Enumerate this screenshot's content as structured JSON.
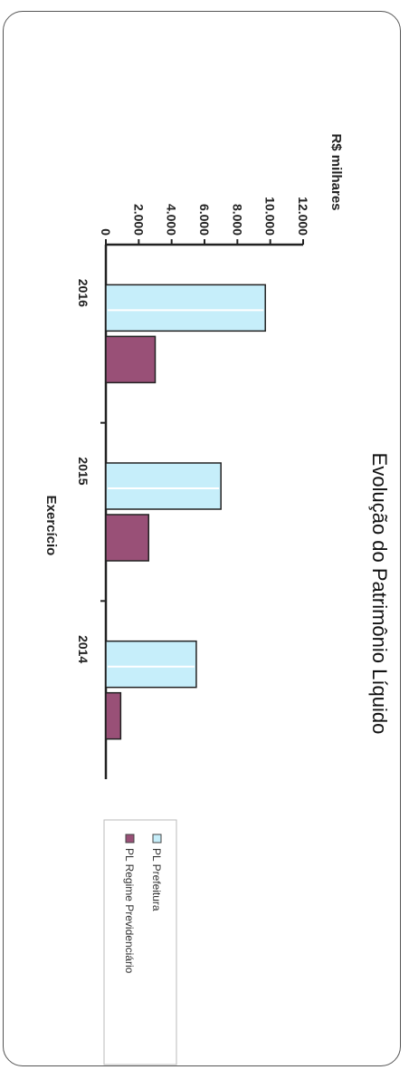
{
  "chart_data": {
    "type": "bar",
    "orientation": "vertical",
    "rotated_on_page": "90deg clockwise",
    "title": "Evolução do Patrimônio Líquido",
    "xlabel": "Exercício",
    "ylabel": "R$ milhares",
    "categories": [
      "2016",
      "2015",
      "2014"
    ],
    "y_ticks": [
      "0",
      "2.000",
      "4.000",
      "6.000",
      "8.000",
      "10.000",
      "12.000"
    ],
    "ylim": [
      0,
      12000
    ],
    "grid": false,
    "legend_position": "right",
    "series": [
      {
        "name": "PL Prefeitura",
        "color": "#c6eefa",
        "values": [
          9700,
          7000,
          5500
        ]
      },
      {
        "name": "PL Regime Previdenciário",
        "color": "#995077",
        "values": [
          3000,
          2600,
          900
        ]
      }
    ]
  }
}
